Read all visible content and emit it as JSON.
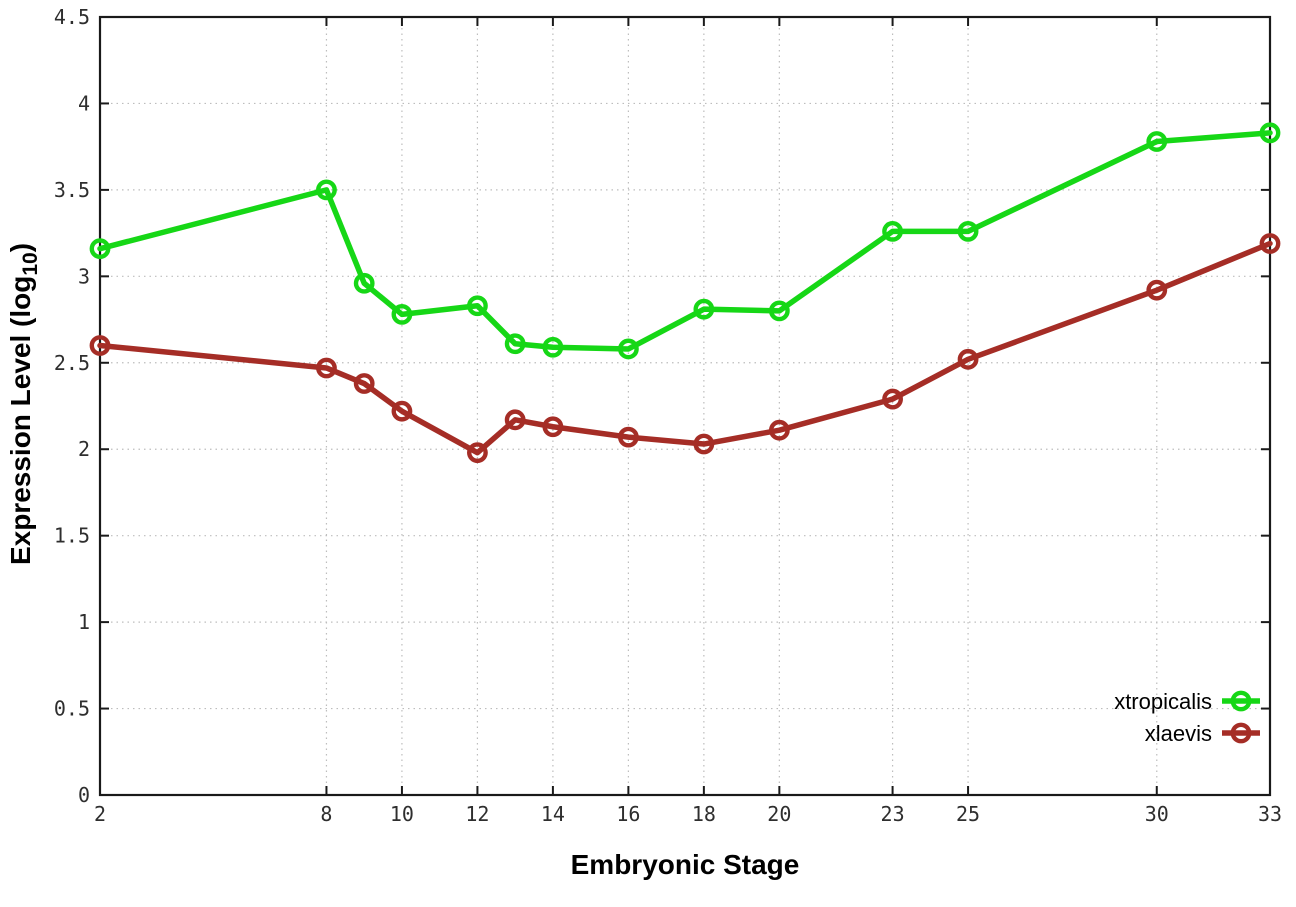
{
  "chart_data": {
    "type": "line",
    "xlabel": "Embryonic Stage",
    "ylabel": "Expression Level (log10)",
    "ylabel_parts": {
      "main": "Expression Level (log",
      "sub": "10",
      "close": ")"
    },
    "x": [
      2,
      8,
      9,
      10,
      12,
      13,
      14,
      16,
      18,
      20,
      23,
      25,
      30,
      33
    ],
    "series": [
      {
        "name": "xtropicalis",
        "color": "#16d716",
        "values": [
          3.16,
          3.5,
          2.96,
          2.78,
          2.83,
          2.61,
          2.59,
          2.58,
          2.81,
          2.8,
          3.26,
          3.26,
          3.78,
          3.83
        ]
      },
      {
        "name": "xlaevis",
        "color": "#a52d26",
        "values": [
          2.6,
          2.47,
          2.38,
          2.22,
          1.98,
          2.17,
          2.13,
          2.07,
          2.03,
          2.11,
          2.29,
          2.52,
          2.92,
          3.19
        ]
      }
    ],
    "xlim": [
      2,
      33
    ],
    "ylim": [
      0,
      4.5
    ],
    "xticks": [
      2,
      8,
      10,
      12,
      14,
      16,
      18,
      20,
      23,
      25,
      30,
      33
    ],
    "xtick_labels": [
      "2",
      "8",
      "10",
      "12",
      "14",
      "16",
      "18",
      "20",
      "23",
      "25",
      "30",
      "33"
    ],
    "yticks": [
      0,
      0.5,
      1,
      1.5,
      2,
      2.5,
      3,
      3.5,
      4,
      4.5
    ],
    "ytick_labels": [
      "0",
      "0.5",
      "1",
      "1.5",
      "2",
      "2.5",
      "3",
      "3.5",
      "4",
      "4.5"
    ],
    "grid": true,
    "legend_position": "bottom-right",
    "legend": [
      "xtropicalis",
      "xlaevis"
    ]
  },
  "style": {
    "background": "#ffffff",
    "border_color": "#1a1a1a",
    "grid_color": "#bdbdbd",
    "tick_label_color": "#2e2e2e",
    "text_color": "#000000"
  }
}
